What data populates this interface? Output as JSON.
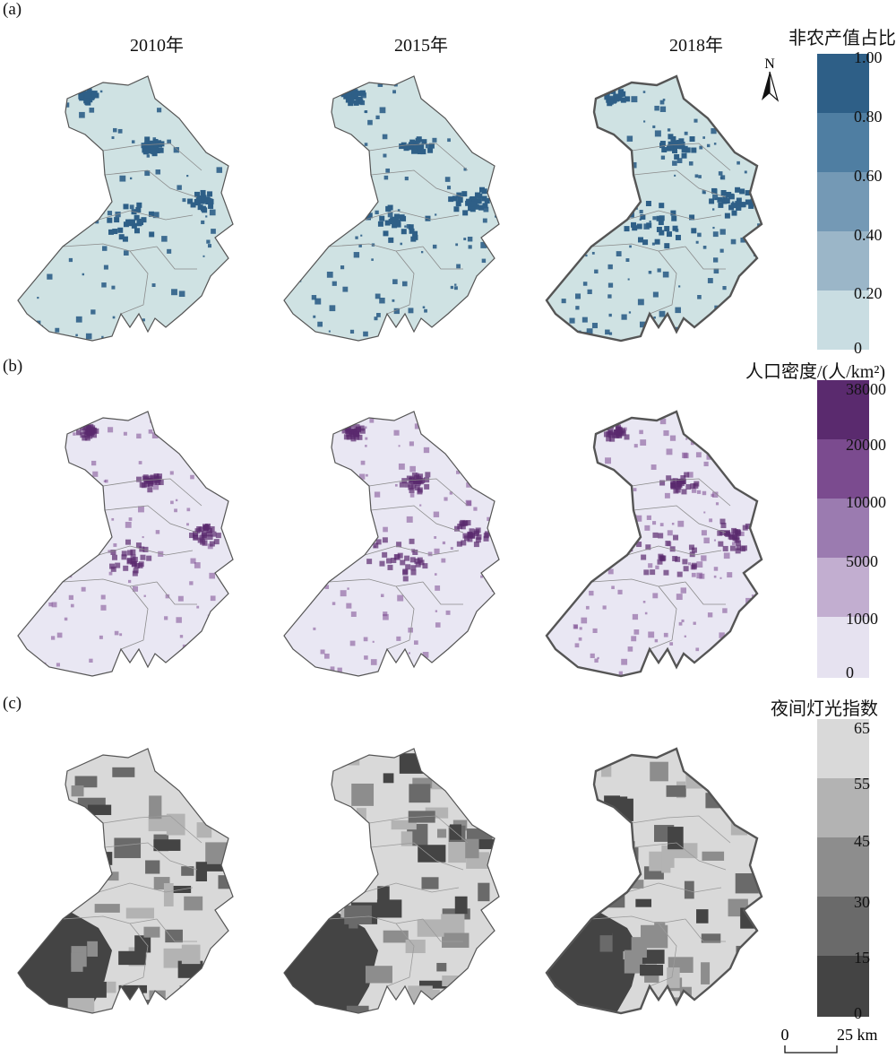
{
  "panels": [
    {
      "label": "(a)",
      "years": [
        "2010年",
        "2015年",
        "2018年"
      ],
      "legend": {
        "title": "非农产值占比",
        "ticks": [
          "1.00",
          "0.80",
          "0.60",
          "0.40",
          "0.20",
          "0"
        ],
        "colors": [
          "#2e5f87",
          "#4f7ea2",
          "#7499b5",
          "#9bb6c8",
          "#c9dde2"
        ]
      },
      "base_color": "#cfe2e3",
      "mark_color": "#2e5f87"
    },
    {
      "label": "(b)",
      "legend": {
        "title": "人口密度/(人/km²)",
        "ticks": [
          "38000",
          "20000",
          "10000",
          "5000",
          "1000",
          "0"
        ],
        "colors": [
          "#5a2a6e",
          "#7b4b8f",
          "#9b7bb0",
          "#c2aed0",
          "#e6e2f0"
        ]
      },
      "base_color": "#e9e7f3",
      "mark_color": "#7b4b8f"
    },
    {
      "label": "(c)",
      "legend": {
        "title": "夜间灯光指数",
        "ticks": [
          "65",
          "55",
          "45",
          "30",
          "15",
          "0"
        ],
        "colors": [
          "#d9d9d9",
          "#b3b3b3",
          "#8d8d8d",
          "#6a6a6a",
          "#444444"
        ]
      },
      "base_color": "#d9d9d9",
      "mark_color": "#707070"
    }
  ],
  "north_arrow": "N",
  "scale_bar": {
    "start": "0",
    "end": "25 km"
  }
}
